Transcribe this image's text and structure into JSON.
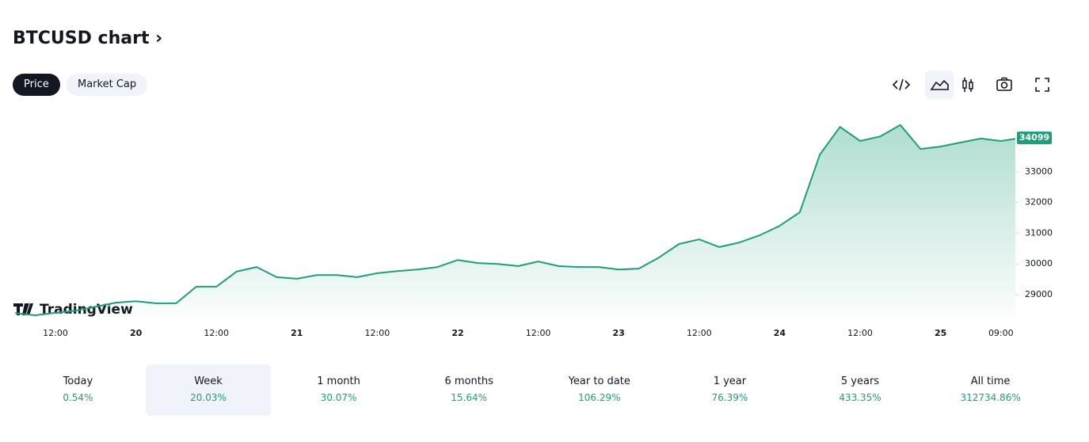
{
  "header": {
    "title": "BTCUSD chart",
    "tabs": [
      "Price",
      "Market Cap"
    ]
  },
  "chart_data": {
    "type": "line",
    "categories": [
      null,
      null,
      "12:00",
      null,
      null,
      null,
      "20",
      null,
      null,
      null,
      "12:00",
      null,
      null,
      null,
      "21",
      null,
      null,
      null,
      "12:00",
      null,
      null,
      null,
      "22",
      null,
      null,
      null,
      "12:00",
      null,
      null,
      null,
      "23",
      null,
      null,
      null,
      "12:00",
      null,
      null,
      null,
      "24",
      null,
      null,
      null,
      "12:00",
      null,
      null,
      null,
      "25",
      null,
      null,
      "09:00",
      null
    ],
    "series": [
      {
        "name": "BTCUSD",
        "color": "#1e9e7a",
        "values": [
          28400,
          28330,
          28410,
          28480,
          28610,
          28740,
          28790,
          28720,
          28720,
          29260,
          29260,
          29750,
          29900,
          29570,
          29520,
          29640,
          29640,
          29570,
          29700,
          29770,
          29820,
          29900,
          30130,
          30030,
          30000,
          29930,
          30080,
          29930,
          29900,
          29900,
          29820,
          29850,
          30210,
          30650,
          30800,
          30550,
          30700,
          30930,
          31240,
          31680,
          33560,
          34460,
          34000,
          34150,
          34520,
          33740,
          33820,
          33950,
          34080,
          34000,
          34099
        ]
      }
    ],
    "ylim": [
      28300,
      35000
    ],
    "yticks": [
      29000,
      30000,
      31000,
      32000,
      33000
    ],
    "watermark": "TradingView"
  },
  "stats": [
    {
      "label": "Today",
      "value": "0.54%"
    },
    {
      "label": "Week",
      "value": "20.03%"
    },
    {
      "label": "1 month",
      "value": "30.07%"
    },
    {
      "label": "6 months",
      "value": "15.64%"
    },
    {
      "label": "Year to date",
      "value": "106.29%"
    },
    {
      "label": "1 year",
      "value": "76.39%"
    },
    {
      "label": "5 years",
      "value": "433.35%"
    },
    {
      "label": "All time",
      "value": "312734.86%"
    }
  ]
}
